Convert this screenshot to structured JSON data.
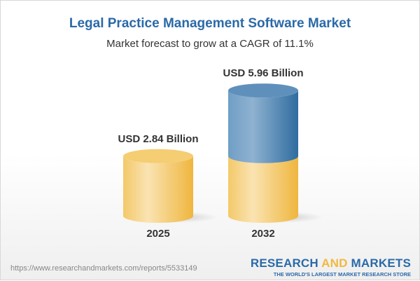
{
  "title": "Legal Practice Management Software Market",
  "subtitle": "Market forecast to grow at a CAGR of 11.1%",
  "chart_data": {
    "type": "bar",
    "style": "3d-cylinder",
    "categories": [
      "2025",
      "2032"
    ],
    "values": [
      2.84,
      5.96
    ],
    "data_labels": [
      "USD 2.84 Billion",
      "USD 5.96 Billion"
    ],
    "unit": "USD Billion",
    "colors": {
      "base": "#f2c55c",
      "growth": "#3f7cb0"
    }
  },
  "footer": {
    "url": "https://www.researchandmarkets.com/reports/5533149",
    "logo_part1": "RESEARCH ",
    "logo_part2": "AND",
    "logo_part3": " MARKETS",
    "tagline": "THE WORLD'S LARGEST MARKET RESEARCH STORE"
  }
}
